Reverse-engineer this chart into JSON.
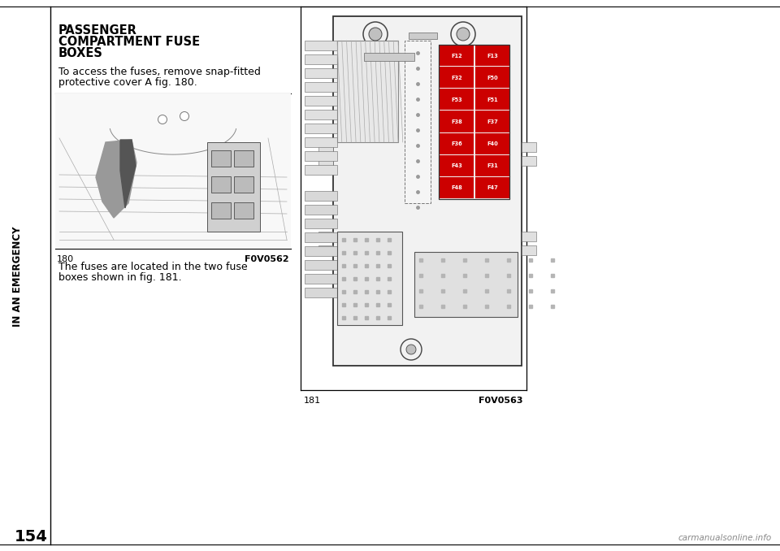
{
  "bg_color": "#ffffff",
  "page_number": "154",
  "sidebar_text": "IN AN EMERGENCY",
  "title_line1": "PASSENGER",
  "title_line2": "COMPARTMENT FUSE",
  "title_line3": "BOXES",
  "body_text_1a": "To access the fuses, remove snap-fitted",
  "body_text_1b": "protective cover A fig. 180.",
  "fig180_label": "180",
  "fig180_code": "F0V0562",
  "body_text_2a": "The fuses are located in the two fuse",
  "body_text_2b": "boxes shown in fig. 181.",
  "fig181_label": "181",
  "fig181_code": "F0V0563",
  "watermark": "carmanualsonline.info",
  "fuse_labels": [
    [
      "F12",
      "F13"
    ],
    [
      "F32",
      "F50"
    ],
    [
      "F53",
      "F51"
    ],
    [
      "F38",
      "F37"
    ],
    [
      "F36",
      "F40"
    ],
    [
      "F43",
      "F31"
    ],
    [
      "F48",
      "F47"
    ]
  ],
  "accent_color": "#cc0000",
  "text_color": "#000000",
  "gray1": "#cccccc",
  "gray2": "#999999",
  "gray3": "#666666",
  "gray4": "#444444",
  "gray5": "#888888"
}
